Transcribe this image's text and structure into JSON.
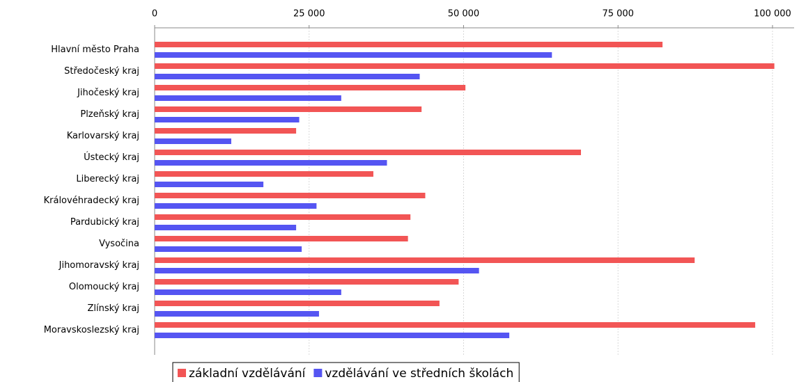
{
  "chart_data": {
    "type": "hbar",
    "categories": [
      "Hlavní město Praha",
      "Středočeský kraj",
      "Jihočeský kraj",
      "Plzeňský kraj",
      "Karlovarský kraj",
      "Ústecký kraj",
      "Liberecký kraj",
      "Královéhradecký kraj",
      "Pardubický kraj",
      "Vysočina",
      "Jihomoravský kraj",
      "Olomoucký kraj",
      "Zlínský kraj",
      "Moravskoslezský kraj"
    ],
    "series": [
      {
        "name": "základní vzdělávání",
        "color": "#f25555",
        "values": [
          82200,
          100300,
          50300,
          43200,
          22900,
          69000,
          35400,
          43800,
          41400,
          41000,
          87400,
          49200,
          46100,
          97200
        ]
      },
      {
        "name": "vzdělávání ve středních školách",
        "color": "#5555f2",
        "values": [
          64300,
          42900,
          30200,
          23400,
          12400,
          37600,
          17600,
          26200,
          22900,
          23800,
          52500,
          30200,
          26600,
          57400
        ]
      }
    ],
    "xlim": [
      0,
      103500
    ],
    "xticks": [
      0,
      {
        "value": 25000,
        "label": "25 000"
      },
      {
        "value": 50000,
        "label": "50 000"
      },
      {
        "value": 75000,
        "label": "75 000"
      },
      {
        "value": 100000,
        "label": "100 000"
      }
    ],
    "grid": true,
    "legend": "bottom"
  }
}
